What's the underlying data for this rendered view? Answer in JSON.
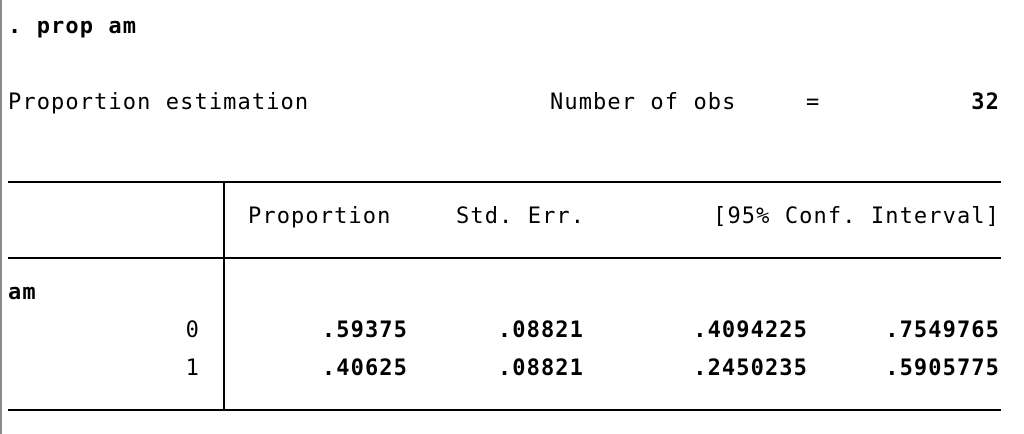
{
  "command": ". prop am",
  "summary": {
    "title": "Proportion estimation",
    "obs_label": "Number of obs",
    "obs_equals": "=",
    "obs_value": "32"
  },
  "table": {
    "headers": {
      "proportion": "Proportion",
      "std_err": "Std. Err.",
      "conf_interval": "[95% Conf. Interval]"
    },
    "variable": "am",
    "rows": [
      {
        "level": "0",
        "proportion": ".59375",
        "std_err": ".08821",
        "ci_low": ".4094225",
        "ci_high": ".7549765"
      },
      {
        "level": "1",
        "proportion": ".40625",
        "std_err": ".08821",
        "ci_low": ".2450235",
        "ci_high": ".5905775"
      }
    ]
  }
}
